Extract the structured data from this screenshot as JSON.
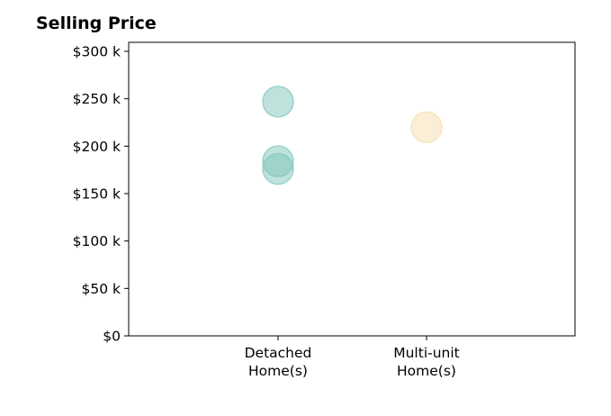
{
  "chart_data": {
    "type": "scatter",
    "title": "Selling Price",
    "xlabel": "",
    "ylabel": "",
    "categories": [
      [
        "Detached",
        "Home(s)"
      ],
      [
        "Multi-unit",
        "Home(s)"
      ]
    ],
    "ylim": [
      0,
      300000
    ],
    "yticks": [
      0,
      50000,
      100000,
      150000,
      200000,
      250000,
      300000
    ],
    "ytick_labels": [
      "$0",
      "$50 k",
      "$100 k",
      "$150 k",
      "$200 k",
      "$250 k",
      "$300 k"
    ],
    "grid": false,
    "points": [
      {
        "category": "Detached Home(s)",
        "value": 247000,
        "color": "#7fc6bc"
      },
      {
        "category": "Detached Home(s)",
        "value": 184000,
        "color": "#7fc6bc"
      },
      {
        "category": "Detached Home(s)",
        "value": 176000,
        "color": "#7fc6bc"
      },
      {
        "category": "Multi-unit Home(s)",
        "value": 220000,
        "color": "#f5deb0"
      }
    ]
  }
}
